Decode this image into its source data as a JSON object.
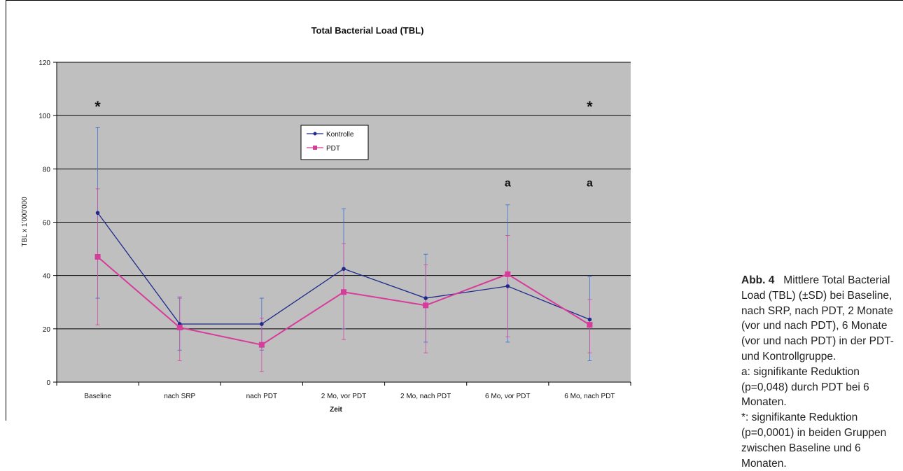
{
  "chart_data": {
    "type": "line",
    "title": "Total Bacterial Load (TBL)",
    "xlabel": "Zeit",
    "ylabel": "TBL x 1'000'000",
    "ylim": [
      0,
      120
    ],
    "yticks": [
      0,
      20,
      40,
      60,
      80,
      100,
      120
    ],
    "grid": true,
    "legend_position": "top-center",
    "categories": [
      "Baseline",
      "nach SRP",
      "nach PDT",
      "2 Mo, vor PDT",
      "2 Mo, nach PDT",
      "6 Mo, vor PDT",
      "6 Mo, nach PDT"
    ],
    "series": [
      {
        "name": "Kontrolle",
        "color": "#1f2a8a",
        "values": [
          63.5,
          21.8,
          21.8,
          42.5,
          31.5,
          36,
          23.5
        ],
        "error_upper": [
          95.5,
          31.5,
          31.5,
          65,
          48,
          66.5,
          39.5
        ],
        "error_lower": [
          31.5,
          12,
          12,
          20,
          15,
          15,
          8
        ]
      },
      {
        "name": "PDT",
        "color": "#d63c9a",
        "values": [
          47,
          20.5,
          14,
          33.8,
          28.8,
          40.5,
          21.5
        ],
        "error_upper": [
          72.5,
          32,
          24,
          52,
          44,
          55,
          31
        ],
        "error_lower": [
          21.5,
          8,
          4,
          16,
          11,
          17,
          11
        ]
      }
    ],
    "annotations": [
      {
        "text": "*",
        "category": "Baseline",
        "y": 105
      },
      {
        "text": "*",
        "category": "6 Mo, nach PDT",
        "y": 105
      },
      {
        "text": "a",
        "category": "6 Mo, vor PDT",
        "y": 75
      },
      {
        "text": "a",
        "category": "6 Mo, nach PDT",
        "y": 75
      }
    ]
  },
  "caption": {
    "label": "Abb. 4",
    "text": "Mittlere Total Bacterial Load (TBL) (±SD) bei Baseline, nach SRP, nach PDT, 2 Monate (vor und nach PDT), 6 Monate (vor und nach PDT) in der PDT- und Kontrollgruppe.",
    "note_a": "a: signifikante Reduktion (p=0,048) durch PDT bei 6 Monaten.",
    "note_star": "*: signifikante Reduktion (p=0,0001) in beiden Gruppen zwischen Baseline und 6 Monaten."
  }
}
